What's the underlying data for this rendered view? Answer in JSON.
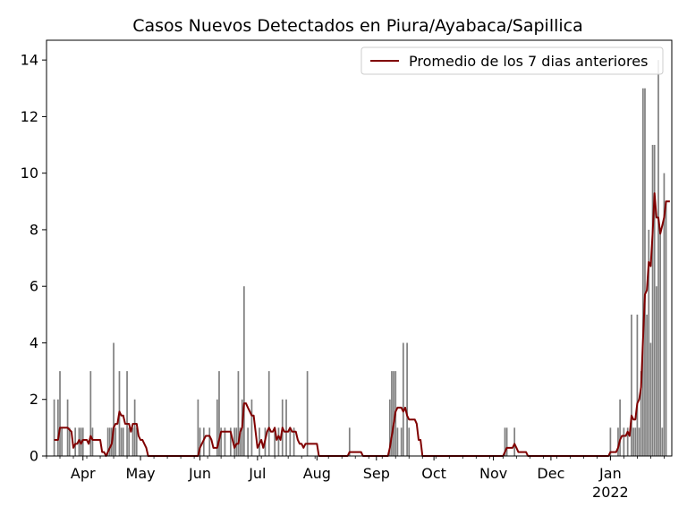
{
  "chart_data": {
    "type": "bar",
    "title": "Casos Nuevos Detectados en Piura/Ayabaca/Sapillica",
    "xlabel": "",
    "ylabel": "",
    "x_start": "2021-03-13",
    "x_end": "2022-02-02",
    "ylim": [
      0,
      14.7
    ],
    "yticks": [
      0,
      2,
      4,
      6,
      8,
      10,
      12,
      14
    ],
    "xticks": [
      {
        "date": "2021-04-01",
        "label": "Apr"
      },
      {
        "date": "2021-05-01",
        "label": "May"
      },
      {
        "date": "2021-06-01",
        "label": "Jun"
      },
      {
        "date": "2021-07-01",
        "label": "Jul"
      },
      {
        "date": "2021-08-01",
        "label": "Aug"
      },
      {
        "date": "2021-09-01",
        "label": "Sep"
      },
      {
        "date": "2021-10-01",
        "label": "Oct"
      },
      {
        "date": "2021-11-01",
        "label": "Nov"
      },
      {
        "date": "2021-12-01",
        "label": "Dec"
      },
      {
        "date": "2022-01-01",
        "label": "Jan",
        "sublabel": "2022"
      }
    ],
    "grid": false,
    "legend": {
      "position": "top-right",
      "label": "Promedio de los 7 dias anteriores"
    },
    "bar_color": "#808080",
    "line_color": "#800000",
    "bars": [
      [
        "2021-03-17",
        2
      ],
      [
        "2021-03-19",
        2
      ],
      [
        "2021-03-20",
        3
      ],
      [
        "2021-03-21",
        1
      ],
      [
        "2021-03-24",
        2
      ],
      [
        "2021-03-25",
        1
      ],
      [
        "2021-03-28",
        1
      ],
      [
        "2021-03-30",
        1
      ],
      [
        "2021-03-31",
        1
      ],
      [
        "2021-04-01",
        1
      ],
      [
        "2021-04_04",
        0
      ],
      [
        "2021-04-05",
        3
      ],
      [
        "2021-04-06",
        1
      ],
      [
        "2021-04-14",
        1
      ],
      [
        "2021-04-15",
        1
      ],
      [
        "2021-04-16",
        1
      ],
      [
        "2021-04-17",
        4
      ],
      [
        "2021-04-18",
        1
      ],
      [
        "2021-04-20",
        3
      ],
      [
        "2021-04-21",
        1
      ],
      [
        "2021-04-22",
        1
      ],
      [
        "2021-04-24",
        3
      ],
      [
        "2021-04-25",
        1
      ],
      [
        "2021-04-27",
        1
      ],
      [
        "2021-04-28",
        2
      ],
      [
        "2021-04-29",
        1
      ],
      [
        "2021-05-31",
        2
      ],
      [
        "2021-06-01",
        1
      ],
      [
        "2021-06-03",
        1
      ],
      [
        "2021-06-06",
        1
      ],
      [
        "2021-06-10",
        2
      ],
      [
        "2021-06-11",
        3
      ],
      [
        "2021-06-12",
        1
      ],
      [
        "2021-06-14",
        1
      ],
      [
        "2021-06-17",
        1
      ],
      [
        "2021-06-19",
        1
      ],
      [
        "2021-06-20",
        1
      ],
      [
        "2021-06-21",
        3
      ],
      [
        "2021-06-22",
        1
      ],
      [
        "2021-06-23",
        2
      ],
      [
        "2021-06-24",
        6
      ],
      [
        "2021-06-26",
        1
      ],
      [
        "2021-06-28",
        2
      ],
      [
        "2021-07-02",
        1
      ],
      [
        "2021-07-05",
        1
      ],
      [
        "2021-07-07",
        3
      ],
      [
        "2021-07-10",
        1
      ],
      [
        "2021-07-12",
        1
      ],
      [
        "2021-07-14",
        2
      ],
      [
        "2021-07-16",
        2
      ],
      [
        "2021-07-18",
        1
      ],
      [
        "2021-07-20",
        1
      ],
      [
        "2021-07-27",
        3
      ],
      [
        "2021-08-18",
        1
      ],
      [
        "2021-09-08",
        2
      ],
      [
        "2021-09-09",
        3
      ],
      [
        "2021-09-10",
        3
      ],
      [
        "2021-09-11",
        3
      ],
      [
        "2021-09-12",
        1
      ],
      [
        "2021-09-14",
        1
      ],
      [
        "2021-09-15",
        4
      ],
      [
        "2021-09-17",
        4
      ],
      [
        "2021-09-18",
        1
      ],
      [
        "2021-11-07",
        1
      ],
      [
        "2021-11-08",
        1
      ],
      [
        "2021-11-12",
        1
      ],
      [
        "2022-01-01",
        1
      ],
      [
        "2022-01-05",
        1
      ],
      [
        "2022-01-06",
        2
      ],
      [
        "2022-01-08",
        1
      ],
      [
        "2022-01-10",
        1
      ],
      [
        "2022-01-12",
        5
      ],
      [
        "2022-01-13",
        1
      ],
      [
        "2022-01-14",
        1
      ],
      [
        "2022-01-15",
        5
      ],
      [
        "2022-01-16",
        1
      ],
      [
        "2022-01-17",
        3
      ],
      [
        "2022-01-18",
        13
      ],
      [
        "2022-01-19",
        13
      ],
      [
        "2022-01-20",
        5
      ],
      [
        "2022-01-21",
        8
      ],
      [
        "2022-01-22",
        4
      ],
      [
        "2022-01-23",
        11
      ],
      [
        "2022-01-24",
        11
      ],
      [
        "2022-01-25",
        6
      ],
      [
        "2022-01-26",
        14
      ],
      [
        "2022-01-27",
        8
      ],
      [
        "2022-01-28",
        1
      ],
      [
        "2022-01-29",
        10
      ],
      [
        "2022-01-30",
        9
      ]
    ],
    "line": [
      [
        "2021-03-17",
        0.57
      ],
      [
        "2021-03-19",
        0.57
      ],
      [
        "2021-03-20",
        1.0
      ],
      [
        "2021-03-24",
        1.0
      ],
      [
        "2021-03-26",
        0.86
      ],
      [
        "2021-03-27",
        0.29
      ],
      [
        "2021-03-28",
        0.43
      ],
      [
        "2021-03-29",
        0.43
      ],
      [
        "2021-03-30",
        0.57
      ],
      [
        "2021-03-31",
        0.43
      ],
      [
        "2021-04-01",
        0.57
      ],
      [
        "2021-04-03",
        0.57
      ],
      [
        "2021-04-04",
        0.43
      ],
      [
        "2021-04-05",
        0.71
      ],
      [
        "2021-04-06",
        0.57
      ],
      [
        "2021-04-10",
        0.57
      ],
      [
        "2021-04-11",
        0.14
      ],
      [
        "2021-04-12",
        0.14
      ],
      [
        "2021-04-13",
        0.0
      ],
      [
        "2021-04-14",
        0.14
      ],
      [
        "2021-04-16",
        0.43
      ],
      [
        "2021-04-17",
        1.0
      ],
      [
        "2021-04-18",
        1.14
      ],
      [
        "2021-04-19",
        1.14
      ],
      [
        "2021-04-20",
        1.57
      ],
      [
        "2021-04-21",
        1.43
      ],
      [
        "2021-04-22",
        1.43
      ],
      [
        "2021-04-23",
        1.14
      ],
      [
        "2021-04-24",
        1.14
      ],
      [
        "2021-04-25",
        1.14
      ],
      [
        "2021-04-26",
        0.86
      ],
      [
        "2021-04-27",
        1.14
      ],
      [
        "2021-04-29",
        1.14
      ],
      [
        "2021-04-30",
        0.71
      ],
      [
        "2021-05-01",
        0.57
      ],
      [
        "2021-05-02",
        0.57
      ],
      [
        "2021-05-03",
        0.43
      ],
      [
        "2021-05-04",
        0.29
      ],
      [
        "2021-05-05",
        0.0
      ],
      [
        "2021-05-31",
        0.0
      ],
      [
        "2021-06-01",
        0.29
      ],
      [
        "2021-06-02",
        0.43
      ],
      [
        "2021-06-03",
        0.57
      ],
      [
        "2021-06-04",
        0.71
      ],
      [
        "2021-06-06",
        0.71
      ],
      [
        "2021-06-07",
        0.57
      ],
      [
        "2021-06-08",
        0.29
      ],
      [
        "2021-06-09",
        0.29
      ],
      [
        "2021-06-10",
        0.29
      ],
      [
        "2021-06-11",
        0.57
      ],
      [
        "2021-06-12",
        0.86
      ],
      [
        "2021-06-14",
        0.86
      ],
      [
        "2021-06-17",
        0.86
      ],
      [
        "2021-06-18",
        0.57
      ],
      [
        "2021-06-19",
        0.29
      ],
      [
        "2021-06-20",
        0.43
      ],
      [
        "2021-06-21",
        0.43
      ],
      [
        "2021-06-22",
        0.86
      ],
      [
        "2021-06-23",
        1.0
      ],
      [
        "2021-06-24",
        1.86
      ],
      [
        "2021-06-25",
        1.86
      ],
      [
        "2021-06-26",
        1.71
      ],
      [
        "2021-06-27",
        1.57
      ],
      [
        "2021-06-28",
        1.43
      ],
      [
        "2021-06-29",
        1.43
      ],
      [
        "2021-06-30",
        0.86
      ],
      [
        "2021-07-01",
        0.29
      ],
      [
        "2021-07-02",
        0.43
      ],
      [
        "2021-07-03",
        0.57
      ],
      [
        "2021-07-04",
        0.29
      ],
      [
        "2021-07-05",
        0.57
      ],
      [
        "2021-07-06",
        0.86
      ],
      [
        "2021-07-07",
        1.0
      ],
      [
        "2021-07-08",
        0.86
      ],
      [
        "2021-07-09",
        0.86
      ],
      [
        "2021-07-10",
        1.0
      ],
      [
        "2021-07-11",
        0.57
      ],
      [
        "2021-07-12",
        0.71
      ],
      [
        "2021-07-13",
        0.57
      ],
      [
        "2021-07-14",
        1.0
      ],
      [
        "2021-07-15",
        0.86
      ],
      [
        "2021-07-16",
        0.86
      ],
      [
        "2021-07-17",
        0.86
      ],
      [
        "2021-07-18",
        1.0
      ],
      [
        "2021-07-19",
        0.86
      ],
      [
        "2021-07-21",
        0.86
      ],
      [
        "2021-07-22",
        0.57
      ],
      [
        "2021-07-23",
        0.43
      ],
      [
        "2021-07-24",
        0.43
      ],
      [
        "2021-07-25",
        0.29
      ],
      [
        "2021-07-26",
        0.43
      ],
      [
        "2021-07-29",
        0.43
      ],
      [
        "2021-08-01",
        0.43
      ],
      [
        "2021-08-02",
        0.0
      ],
      [
        "2021-08-17",
        0.0
      ],
      [
        "2021-08-18",
        0.14
      ],
      [
        "2021-08-24",
        0.14
      ],
      [
        "2021-08-25",
        0.0
      ],
      [
        "2021-09-07",
        0.0
      ],
      [
        "2021-09-08",
        0.29
      ],
      [
        "2021-09-09",
        0.71
      ],
      [
        "2021-09-10",
        1.14
      ],
      [
        "2021-09-11",
        1.57
      ],
      [
        "2021-09-12",
        1.71
      ],
      [
        "2021-09-14",
        1.71
      ],
      [
        "2021-09-15",
        1.57
      ],
      [
        "2021-09-16",
        1.71
      ],
      [
        "2021-09-17",
        1.43
      ],
      [
        "2021-09-18",
        1.29
      ],
      [
        "2021-09-21",
        1.29
      ],
      [
        "2021-09-22",
        1.14
      ],
      [
        "2021-09-23",
        0.57
      ],
      [
        "2021-09-24",
        0.57
      ],
      [
        "2021-09-25",
        0.0
      ],
      [
        "2021-11-06",
        0.0
      ],
      [
        "2021-11-07",
        0.14
      ],
      [
        "2021-11-08",
        0.29
      ],
      [
        "2021-11-11",
        0.29
      ],
      [
        "2021-11-12",
        0.43
      ],
      [
        "2021-11-13",
        0.29
      ],
      [
        "2021-11-14",
        0.14
      ],
      [
        "2021-11-18",
        0.14
      ],
      [
        "2021-11-19",
        0.0
      ],
      [
        "2021-12-31",
        0.0
      ],
      [
        "2022-01-01",
        0.14
      ],
      [
        "2022-01-04",
        0.14
      ],
      [
        "2022-01-05",
        0.29
      ],
      [
        "2022-01-06",
        0.57
      ],
      [
        "2022-01-07",
        0.71
      ],
      [
        "2022-01-08",
        0.71
      ],
      [
        "2022-01-09",
        0.71
      ],
      [
        "2022-01-10",
        0.86
      ],
      [
        "2022-01-11",
        0.71
      ],
      [
        "2022-01-12",
        1.43
      ],
      [
        "2022-01-13",
        1.29
      ],
      [
        "2022-01-14",
        1.29
      ],
      [
        "2022-01-15",
        1.86
      ],
      [
        "2022-01-16",
        2.0
      ],
      [
        "2022-01-17",
        2.43
      ],
      [
        "2022-01-18",
        4.14
      ],
      [
        "2022-01-19",
        5.71
      ],
      [
        "2022-01-20",
        5.86
      ],
      [
        "2022-01-21",
        6.86
      ],
      [
        "2022-01-22",
        6.71
      ],
      [
        "2022-01-23",
        7.86
      ],
      [
        "2022-01-24",
        9.29
      ],
      [
        "2022-01-25",
        8.43
      ],
      [
        "2022-01-26",
        8.43
      ],
      [
        "2022-01-27",
        7.86
      ],
      [
        "2022-01-28",
        8.14
      ],
      [
        "2022-01-29",
        8.43
      ],
      [
        "2022-01-30",
        9.0
      ],
      [
        "2022-02-01",
        9.0
      ]
    ]
  }
}
